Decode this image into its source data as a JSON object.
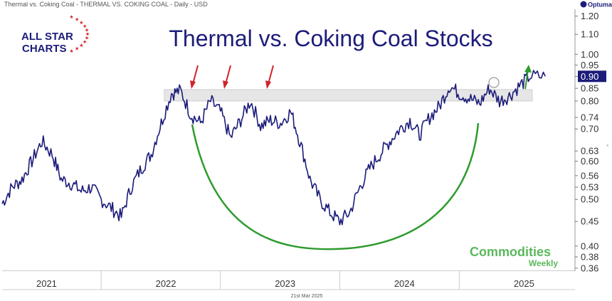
{
  "header": {
    "symbol_text": "Thermal vs. Coking Coal - THERMAL VS. COKING COAL - Daily - USD",
    "brand": "Optuma"
  },
  "logo": {
    "line1": "ALL STAR",
    "line2": "CHARTS"
  },
  "watermark": {
    "line1": "Commodities",
    "line2": "Weekly"
  },
  "footer": {
    "date": "21st Mar 2025"
  },
  "colors": {
    "price_line": "#1c1c7a",
    "arrow_red": "#d0242b",
    "arrow_green": "#2e9b2e",
    "arc_green": "#2e9b2e",
    "resistance_band": "#e6e6e6",
    "watermark_green": "#5cb85c",
    "last_price_bg": "#1c1c7a"
  },
  "chart_data": {
    "type": "line",
    "title": "Thermal vs. Coking Coal Stocks",
    "y_scale": "log",
    "ylim": [
      0.355,
      1.24
    ],
    "y_ticks": [
      1.2,
      1.1,
      1.0,
      0.95,
      0.9,
      0.85,
      0.8,
      0.74,
      0.7,
      0.63,
      0.6,
      0.56,
      0.53,
      0.5,
      0.45,
      0.4,
      0.38,
      0.36
    ],
    "y_tick_labels": [
      "1.20",
      "1.10",
      "1.00",
      "0.95",
      "0.90",
      "0.85",
      "0.80",
      "0.74",
      "0.70",
      "0.63",
      "0.60",
      "0.56",
      "0.53",
      "0.50",
      "0.45",
      "0.40",
      "0.38",
      "0.36"
    ],
    "x_labels": [
      "2021",
      "2022",
      "2023",
      "2024",
      "2025"
    ],
    "last_price_label": "0.90",
    "resistance_zone": {
      "low": 0.8,
      "high": 0.845,
      "x_start": "2022-01-10",
      "x_end": "2025-04-15"
    },
    "series": [
      {
        "x": [
          "2020-09-01",
          "2020-10-01",
          "2020-11-01",
          "2020-12-01",
          "2021-01-01",
          "2021-02-01",
          "2021-03-01",
          "2021-04-01",
          "2021-05-01",
          "2021-06-01",
          "2021-07-01",
          "2021-08-01",
          "2021-09-01",
          "2021-10-01",
          "2021-11-01",
          "2021-12-01",
          "2022-01-01",
          "2022-02-01",
          "2022-03-01",
          "2022-04-01",
          "2022-05-01",
          "2022-06-01",
          "2022-07-01",
          "2022-08-01",
          "2022-09-01",
          "2022-10-01",
          "2022-11-01",
          "2022-12-01",
          "2023-01-01",
          "2023-02-01",
          "2023-03-01",
          "2023-04-01",
          "2023-05-01",
          "2023-06-01",
          "2023-07-01",
          "2023-08-01",
          "2023-09-01",
          "2023-10-01",
          "2023-11-01",
          "2023-12-01",
          "2024-01-01",
          "2024-02-01",
          "2024-03-01",
          "2024-04-01",
          "2024-05-01",
          "2024-06-01",
          "2024-07-01",
          "2024-08-01",
          "2024-09-01",
          "2024-10-01",
          "2024-11-01",
          "2024-12-01",
          "2025-01-01",
          "2025-02-01",
          "2025-03-21"
        ],
        "values": [
          0.49,
          0.53,
          0.55,
          0.6,
          0.66,
          0.62,
          0.55,
          0.54,
          0.52,
          0.53,
          0.5,
          0.48,
          0.46,
          0.53,
          0.58,
          0.62,
          0.72,
          0.83,
          0.84,
          0.75,
          0.72,
          0.8,
          0.76,
          0.67,
          0.73,
          0.8,
          0.71,
          0.73,
          0.72,
          0.76,
          0.66,
          0.55,
          0.5,
          0.47,
          0.45,
          0.47,
          0.53,
          0.58,
          0.62,
          0.66,
          0.7,
          0.73,
          0.68,
          0.74,
          0.78,
          0.86,
          0.83,
          0.81,
          0.79,
          0.85,
          0.8,
          0.82,
          0.86,
          0.9,
          0.9
        ]
      }
    ]
  }
}
